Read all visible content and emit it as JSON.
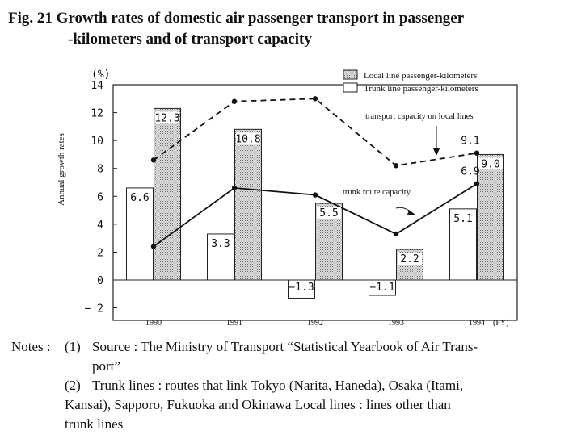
{
  "title": {
    "line1": "Fig. 21 Growth rates of domestic air passenger transport in passenger",
    "line2": "-kilometers and of transport capacity"
  },
  "chart_data": {
    "type": "bar",
    "categories": [
      "1990",
      "1991",
      "1992",
      "1993",
      "1994"
    ],
    "x_unit_label": "(FY)",
    "ylabel": "Annual growth rates",
    "yunit": "(%)",
    "ylim": [
      -2,
      14
    ],
    "yticks": [
      -2,
      0,
      2,
      4,
      6,
      8,
      10,
      12,
      14
    ],
    "grid": false,
    "legend_position": "top-right",
    "series": [
      {
        "name": "Trunk line passenger-kilometers",
        "kind": "bar",
        "fill": "#ffffff",
        "values": [
          6.6,
          3.3,
          -1.3,
          -1.1,
          5.1
        ],
        "labels": [
          "6.6",
          "3.3",
          "−1.3",
          "−1.1",
          "5.1"
        ]
      },
      {
        "name": "Local line passenger-kilometers",
        "kind": "bar",
        "fill": "#d8d8d8",
        "values": [
          12.3,
          10.8,
          5.5,
          2.2,
          9.0
        ],
        "labels": [
          "12.3",
          "10.8",
          "5.5",
          "2.2",
          "9.0"
        ]
      },
      {
        "kind": "line",
        "style": "dashed",
        "values": [
          8.6,
          12.8,
          13.0,
          8.2,
          9.1
        ]
      },
      {
        "kind": "line",
        "style": "solid",
        "values": [
          2.4,
          6.6,
          6.1,
          3.3,
          6.9
        ]
      }
    ],
    "line_value_labels": [
      {
        "series": 2,
        "index": 4,
        "text": "9.1"
      },
      {
        "series": 3,
        "index": 4,
        "text": "6.9"
      }
    ],
    "annotations": [
      {
        "text": "transport capacity on local lines",
        "target_series": 2
      },
      {
        "text": "trunk route capacity",
        "target_series": 3
      }
    ]
  },
  "notes": {
    "head": "Notes :",
    "items": [
      {
        "num": "(1)",
        "text": "Source : The Ministry of Transport “Statistical Yearbook of Air Trans-",
        "cont": "port”"
      },
      {
        "num": "(2)",
        "text": "Trunk lines : routes that link Tokyo (Narita, Haneda), Osaka (Itami,",
        "cont": "Kansai), Sapporo, Fukuoka and Okinawa Local lines : lines other than",
        "cont2": "trunk lines"
      }
    ]
  }
}
